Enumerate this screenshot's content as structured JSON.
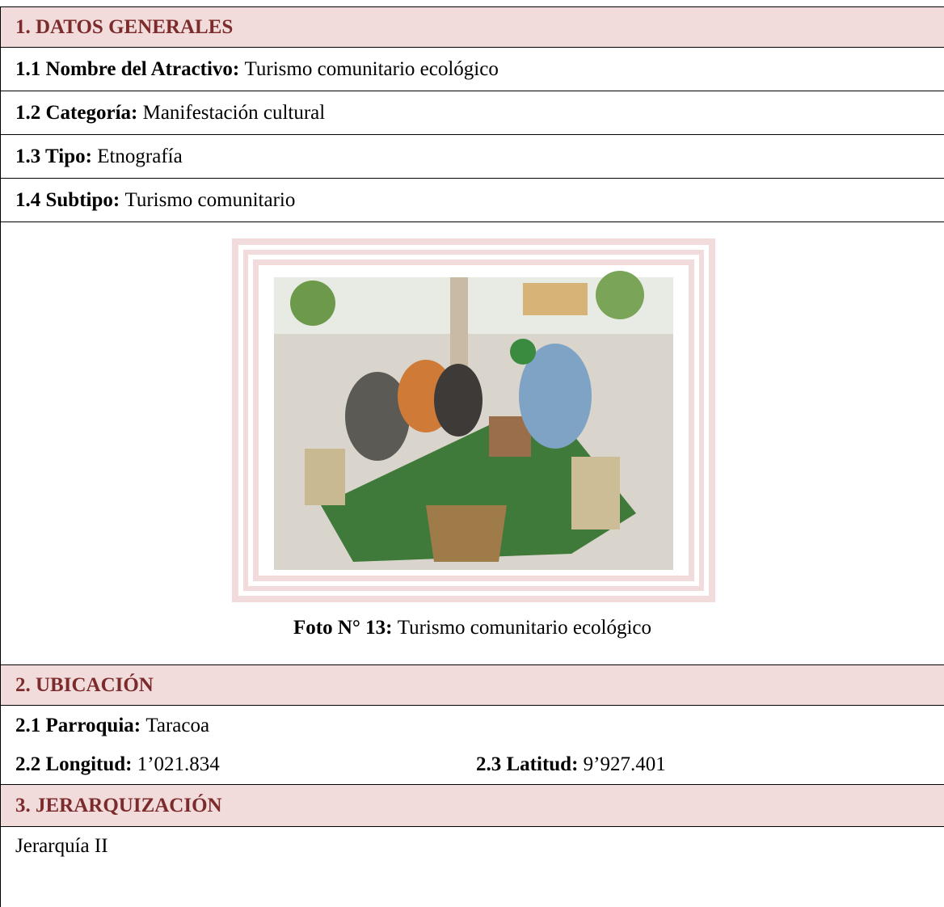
{
  "sections": [
    {
      "title": "1. DATOS GENERALES",
      "items": [
        {
          "label": "1.1 Nombre del Atractivo:",
          "value": "Turismo comunitario ecológico"
        },
        {
          "label": "1.2 Categoría:",
          "value": "Manifestación cultural"
        },
        {
          "label": "1.3 Tipo:",
          "value": "Etnografía"
        },
        {
          "label": "1.4 Subtipo:",
          "value": "Turismo comunitario"
        }
      ],
      "photo": {
        "caption_label": "Foto N° 13:",
        "caption_text": "Turismo comunitario ecológico"
      }
    },
    {
      "title": "2. UBICACIÓN",
      "items": [
        {
          "label": "2.1 Parroquia:",
          "value": "Taracoa"
        },
        {
          "label": "2.2 Longitud:",
          "value": "1’021.834"
        },
        {
          "label": "2.3 Latitud:",
          "value": "9’927.401"
        }
      ]
    },
    {
      "title": "3. JERARQUIZACIÓN",
      "text": "Jerarquía II"
    }
  ]
}
